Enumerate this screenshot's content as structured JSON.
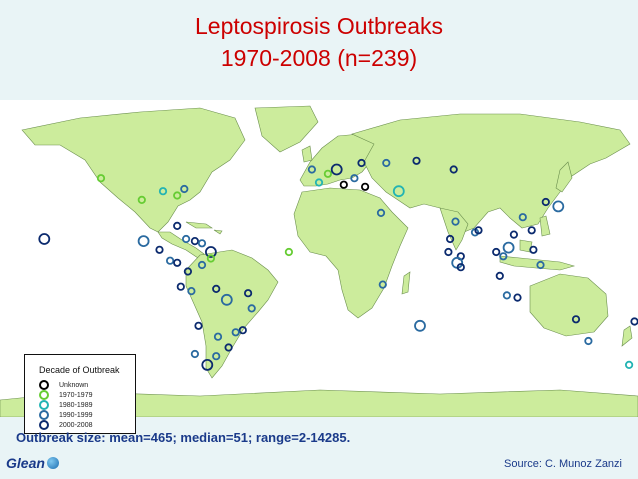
{
  "title": {
    "line1": "Leptospirosis Outbreaks",
    "line2": "1970-2008 (n=239)"
  },
  "legend": {
    "title": "Decade of Outbreak",
    "items": [
      {
        "label": "Unknown",
        "color": "#000000"
      },
      {
        "label": "1970-1979",
        "color": "#66cc33"
      },
      {
        "label": "1980-1989",
        "color": "#22b3b3"
      },
      {
        "label": "1990-1999",
        "color": "#2a6aa0"
      },
      {
        "label": "2000-2008",
        "color": "#0b2a6e"
      }
    ]
  },
  "summary": "Outbreak size: mean=465;  median=51;  range=2-14285.",
  "source": "Source: C. Munoz Zanzi",
  "logo": {
    "text": "Glean",
    "icon": "globe-icon"
  },
  "colors": {
    "land": "#ccec9c",
    "ocean": "#ffffff",
    "title": "#cc0000",
    "text": "#1a3a8a",
    "background": "#e9f4f6"
  },
  "outbreaks": [
    {
      "lon": -155,
      "lat": 20,
      "decade": "2000-2008"
    },
    {
      "lon": -123,
      "lat": 48,
      "decade": "1970-1979"
    },
    {
      "lon": -100,
      "lat": 38,
      "decade": "1970-1979"
    },
    {
      "lon": -88,
      "lat": 42,
      "decade": "1980-1989"
    },
    {
      "lon": -80,
      "lat": 40,
      "decade": "1970-1979"
    },
    {
      "lon": -76,
      "lat": 43,
      "decade": "1990-1999"
    },
    {
      "lon": -80,
      "lat": 26,
      "decade": "2000-2008"
    },
    {
      "lon": -99,
      "lat": 19,
      "decade": "1990-1999"
    },
    {
      "lon": -90,
      "lat": 15,
      "decade": "2000-2008"
    },
    {
      "lon": -84,
      "lat": 10,
      "decade": "1990-1999"
    },
    {
      "lon": -80,
      "lat": 9,
      "decade": "2000-2008"
    },
    {
      "lon": -75,
      "lat": 20,
      "decade": "1990-1999"
    },
    {
      "lon": -70,
      "lat": 19,
      "decade": "2000-2008"
    },
    {
      "lon": -66,
      "lat": 18,
      "decade": "1990-1999"
    },
    {
      "lon": -61,
      "lat": 14,
      "decade": "2000-2008"
    },
    {
      "lon": -61,
      "lat": 11,
      "decade": "1970-1979"
    },
    {
      "lon": -74,
      "lat": 5,
      "decade": "2000-2008"
    },
    {
      "lon": -66,
      "lat": 8,
      "decade": "1990-1999"
    },
    {
      "lon": -78,
      "lat": -2,
      "decade": "2000-2008"
    },
    {
      "lon": -72,
      "lat": -4,
      "decade": "1990-1999"
    },
    {
      "lon": -58,
      "lat": -3,
      "decade": "2000-2008"
    },
    {
      "lon": -52,
      "lat": -8,
      "decade": "1990-1999"
    },
    {
      "lon": -40,
      "lat": -5,
      "decade": "2000-2008"
    },
    {
      "lon": -38,
      "lat": -12,
      "decade": "1990-1999"
    },
    {
      "lon": -43,
      "lat": -22,
      "decade": "2000-2008"
    },
    {
      "lon": -47,
      "lat": -23,
      "decade": "1990-1999"
    },
    {
      "lon": -51,
      "lat": -30,
      "decade": "2000-2008"
    },
    {
      "lon": -58,
      "lat": -34,
      "decade": "1990-1999"
    },
    {
      "lon": -63,
      "lat": -38,
      "decade": "2000-2008"
    },
    {
      "lon": -70,
      "lat": -33,
      "decade": "1990-1999"
    },
    {
      "lon": -68,
      "lat": -20,
      "decade": "2000-2008"
    },
    {
      "lon": -57,
      "lat": -25,
      "decade": "1990-1999"
    },
    {
      "lon": -4,
      "lat": 52,
      "decade": "1990-1999"
    },
    {
      "lon": 0,
      "lat": 46,
      "decade": "1980-1989"
    },
    {
      "lon": 5,
      "lat": 50,
      "decade": "1970-1979"
    },
    {
      "lon": 10,
      "lat": 52,
      "decade": "2000-2008"
    },
    {
      "lon": 14,
      "lat": 45,
      "decade": "Unknown"
    },
    {
      "lon": 20,
      "lat": 48,
      "decade": "1990-1999"
    },
    {
      "lon": 26,
      "lat": 44,
      "decade": "Unknown"
    },
    {
      "lon": 24,
      "lat": 55,
      "decade": "2000-2008"
    },
    {
      "lon": 38,
      "lat": 55,
      "decade": "1990-1999"
    },
    {
      "lon": 35,
      "lat": 32,
      "decade": "1990-1999"
    },
    {
      "lon": 45,
      "lat": 42,
      "decade": "1980-1989"
    },
    {
      "lon": 55,
      "lat": 56,
      "decade": "2000-2008"
    },
    {
      "lon": 76,
      "lat": 52,
      "decade": "2000-2008"
    },
    {
      "lon": 74,
      "lat": 20,
      "decade": "2000-2008"
    },
    {
      "lon": 77,
      "lat": 28,
      "decade": "1990-1999"
    },
    {
      "lon": 73,
      "lat": 14,
      "decade": "2000-2008"
    },
    {
      "lon": 80,
      "lat": 12,
      "decade": "2000-2008"
    },
    {
      "lon": 78,
      "lat": 9,
      "decade": "1990-1999"
    },
    {
      "lon": 80,
      "lat": 7,
      "decade": "2000-2008"
    },
    {
      "lon": 88,
      "lat": 23,
      "decade": "1990-1999"
    },
    {
      "lon": 90,
      "lat": 24,
      "decade": "2000-2008"
    },
    {
      "lon": 100,
      "lat": 14,
      "decade": "2000-2008"
    },
    {
      "lon": 104,
      "lat": 12,
      "decade": "1990-1999"
    },
    {
      "lon": 102,
      "lat": 3,
      "decade": "2000-2008"
    },
    {
      "lon": 107,
      "lat": 16,
      "decade": "1990-1999"
    },
    {
      "lon": 110,
      "lat": 22,
      "decade": "2000-2008"
    },
    {
      "lon": 115,
      "lat": 30,
      "decade": "1990-1999"
    },
    {
      "lon": 120,
      "lat": 24,
      "decade": "2000-2008"
    },
    {
      "lon": 121,
      "lat": 15,
      "decade": "2000-2008"
    },
    {
      "lon": 125,
      "lat": 8,
      "decade": "1990-1999"
    },
    {
      "lon": 128,
      "lat": 37,
      "decade": "2000-2008"
    },
    {
      "lon": 135,
      "lat": 35,
      "decade": "1990-1999"
    },
    {
      "lon": 112,
      "lat": -7,
      "decade": "2000-2008"
    },
    {
      "lon": 106,
      "lat": -6,
      "decade": "1990-1999"
    },
    {
      "lon": 145,
      "lat": -17,
      "decade": "2000-2008"
    },
    {
      "lon": 152,
      "lat": -27,
      "decade": "1990-1999"
    },
    {
      "lon": 175,
      "lat": -38,
      "decade": "1980-1989"
    },
    {
      "lon": 178,
      "lat": -18,
      "decade": "2000-2008"
    },
    {
      "lon": 57,
      "lat": -20,
      "decade": "1990-1999"
    },
    {
      "lon": -17,
      "lat": 14,
      "decade": "1970-1979"
    },
    {
      "lon": 36,
      "lat": -1,
      "decade": "1990-1999"
    }
  ]
}
